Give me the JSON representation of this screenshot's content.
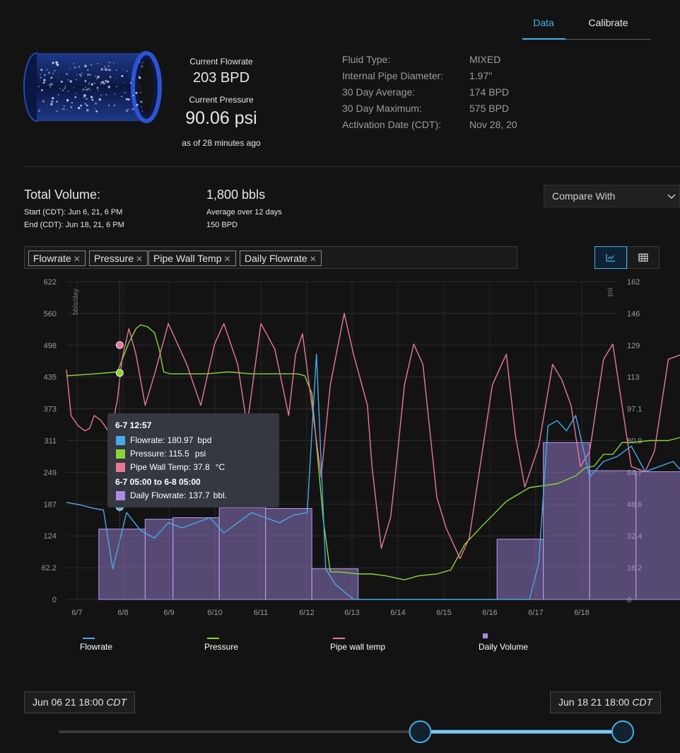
{
  "tabs": {
    "data": "Data",
    "calibrate": "Calibrate"
  },
  "current": {
    "flowrate_label": "Current Flowrate",
    "flowrate_value": "203 BPD",
    "pressure_label": "Current Pressure",
    "pressure_value": "90.06 psi",
    "as_of": "as of 28 minutes ago"
  },
  "facts": [
    {
      "label": "Fluid Type:",
      "value": "MIXED"
    },
    {
      "label": "Internal Pipe Diameter:",
      "value": "1.97\""
    },
    {
      "label": "30 Day Average:",
      "value": "174 BPD"
    },
    {
      "label": "30 Day Maximum:",
      "value": "575 BPD"
    },
    {
      "label": "Activation Date (CDT):",
      "value": "Nov 28, 20"
    }
  ],
  "total": {
    "title": "Total Volume:",
    "start": "Start (CDT): Jun 6, 21, 6 PM",
    "end": "End (CDT): Jun 18, 21, 6 PM",
    "volume": "1,800 bbls",
    "avg_label": "Average over 12 days",
    "avg_value": "150 BPD"
  },
  "compare": {
    "label": "Compare With"
  },
  "filters": [
    "Flowrate",
    "Pressure",
    "Pipe Wall Temp",
    "Daily Flowrate"
  ],
  "view": {
    "active": "line-chart"
  },
  "tooltip": {
    "time": "6-7 12:57",
    "flowrate_label": "Flowrate: 180.97",
    "flowrate_unit": "bpd",
    "pressure_label": "Pressure: 115.5",
    "pressure_unit": "psi",
    "temp_label": "Pipe Wall Temp: 37.8",
    "temp_unit": "°C",
    "range": "6-7 05:00 to 6-8 05:00",
    "daily_label": "Daily Flowrate: 137.7",
    "daily_unit": "bbl."
  },
  "legend": [
    "Flowrate",
    "Pressure",
    "Pipe wall temp",
    "Daily Volume"
  ],
  "range": {
    "start": "Jun 06 21 18:00",
    "end": "Jun 18 21 18:00",
    "tz": "CDT",
    "slider_from": 0.64,
    "slider_to": 1.0
  },
  "colors": {
    "flowrate": "#4aa8e8",
    "pressure": "#8ad43a",
    "temp": "#e87896",
    "daily": "#a98be6",
    "accent": "#45b1e8"
  },
  "chart_data": {
    "type": "line",
    "x_ticks": [
      "6/7",
      "6/8",
      "6/9",
      "6/10",
      "6/11",
      "6/12",
      "6/13",
      "6/14",
      "6/15",
      "6/16",
      "6/17",
      "6/18"
    ],
    "y_left_label": "bbls/day",
    "y_left_ticks": [
      "0",
      "62.2",
      "124",
      "187",
      "249",
      "311",
      "373",
      "435",
      "498",
      "560",
      "622"
    ],
    "y_right_label": "psi",
    "y_right_ticks": [
      "0",
      "16.2",
      "32.4",
      "48.6",
      "64.7",
      "80.9",
      "97.1",
      "113",
      "129",
      "146",
      "162"
    ],
    "ylim_left": [
      0,
      622
    ],
    "ylim_right": [
      0,
      162
    ],
    "daily_bars": [
      {
        "from": 6.7,
        "to": 7.7,
        "value": 137.7
      },
      {
        "from": 7.7,
        "to": 8.3,
        "value": 157
      },
      {
        "from": 8.3,
        "to": 9.3,
        "value": 160
      },
      {
        "from": 9.3,
        "to": 10.3,
        "value": 180
      },
      {
        "from": 10.3,
        "to": 11.3,
        "value": 178
      },
      {
        "from": 11.3,
        "to": 12.3,
        "value": 60
      },
      {
        "from": 15.3,
        "to": 16.3,
        "value": 118
      },
      {
        "from": 16.3,
        "to": 17.3,
        "value": 307
      },
      {
        "from": 17.3,
        "to": 18.3,
        "value": 252
      },
      {
        "from": 18.3,
        "to": 19.3,
        "value": 250
      },
      {
        "from": 19.3,
        "to": 20.3,
        "value": 228
      }
    ],
    "series": [
      {
        "name": "Pressure",
        "axis": "right",
        "x": [
          6.0,
          6.6,
          7.1,
          7.2,
          7.35,
          7.5,
          7.6,
          7.75,
          7.9,
          8.0,
          8.1,
          8.25,
          8.5,
          9.0,
          9.5,
          10.0,
          10.5,
          11.0,
          11.15,
          11.3,
          11.55,
          11.7,
          11.9,
          12.3,
          12.6,
          12.9,
          13.3,
          13.6,
          14.0,
          14.3,
          14.6,
          15.0,
          15.5,
          16.0,
          16.3,
          16.6,
          17.0,
          17.2,
          17.4,
          17.6,
          17.8,
          18.0,
          18.2,
          18.6,
          19.0,
          19.5,
          20.0,
          20.3,
          20.6
        ],
        "y": [
          114,
          115,
          116,
          122,
          131,
          138,
          140,
          139,
          136,
          128,
          116,
          115,
          115,
          115,
          116,
          115,
          115,
          115,
          114,
          105,
          40,
          14,
          14,
          13,
          13,
          12,
          10,
          12,
          13,
          15,
          28,
          38,
          50,
          57,
          58,
          59,
          63,
          67,
          68,
          74,
          74,
          80,
          80,
          81,
          81,
          84,
          88,
          87,
          88
        ]
      },
      {
        "name": "Pipe wall temp",
        "axis": "left",
        "x": [
          6.0,
          6.1,
          6.25,
          6.4,
          6.5,
          6.6,
          6.75,
          6.9,
          7.0,
          7.1,
          7.2,
          7.35,
          7.5,
          7.7,
          7.9,
          8.2,
          8.6,
          8.9,
          9.2,
          9.4,
          9.7,
          9.9,
          10.2,
          10.5,
          10.8,
          10.95,
          11.1,
          11.3,
          11.5,
          11.7,
          12.0,
          12.2,
          12.5,
          12.6,
          12.8,
          13.0,
          13.1,
          13.3,
          13.5,
          13.7,
          14.0,
          14.2,
          14.5,
          14.7,
          15.0,
          15.2,
          15.5,
          15.7,
          15.9,
          16.2,
          16.5,
          16.7,
          16.9,
          17.1,
          17.3,
          17.6,
          17.8,
          18.0,
          18.2,
          18.5,
          18.7,
          19.0,
          19.3,
          19.6,
          19.8,
          20.0,
          20.2,
          20.4,
          20.6
        ],
        "y": [
          450,
          360,
          340,
          330,
          335,
          360,
          350,
          330,
          345,
          390,
          470,
          530,
          480,
          380,
          440,
          540,
          460,
          380,
          500,
          540,
          460,
          340,
          540,
          490,
          360,
          480,
          520,
          380,
          240,
          420,
          560,
          480,
          380,
          260,
          100,
          160,
          240,
          420,
          500,
          460,
          200,
          140,
          80,
          120,
          300,
          420,
          480,
          320,
          220,
          300,
          460,
          430,
          380,
          260,
          290,
          470,
          500,
          380,
          260,
          250,
          290,
          470,
          480,
          380,
          230,
          200,
          360,
          460,
          310
        ]
      },
      {
        "name": "Flowrate",
        "axis": "left",
        "x": [
          6.0,
          6.3,
          6.6,
          6.8,
          7.0,
          7.3,
          7.6,
          7.9,
          8.2,
          8.5,
          8.8,
          9.1,
          9.4,
          9.7,
          10.0,
          10.3,
          10.6,
          10.9,
          11.2,
          11.4,
          11.6,
          11.8,
          12.2,
          12.6,
          13.0,
          13.5,
          14.0,
          14.5,
          15.0,
          15.5,
          15.8,
          16.0,
          16.2,
          16.4,
          16.6,
          16.8,
          17.0,
          17.3,
          17.6,
          17.9,
          18.2,
          18.5,
          18.8,
          19.1,
          19.4,
          19.7,
          20.0,
          20.2,
          20.4,
          20.6
        ],
        "y": [
          190,
          185,
          178,
          175,
          60,
          170,
          135,
          120,
          150,
          140,
          150,
          160,
          130,
          150,
          170,
          160,
          150,
          165,
          170,
          480,
          60,
          30,
          0,
          0,
          0,
          0,
          0,
          0,
          0,
          0,
          0,
          0,
          70,
          340,
          350,
          330,
          360,
          240,
          270,
          280,
          300,
          250,
          260,
          270,
          240,
          270,
          250,
          0,
          0,
          220
        ]
      }
    ],
    "markers": [
      {
        "series": "Flowrate",
        "x": 7.15,
        "y": 181
      },
      {
        "series": "Pressure",
        "x": 7.15,
        "y": 115.5
      },
      {
        "series": "Pipe wall temp",
        "x": 7.15,
        "y": 498
      }
    ]
  }
}
